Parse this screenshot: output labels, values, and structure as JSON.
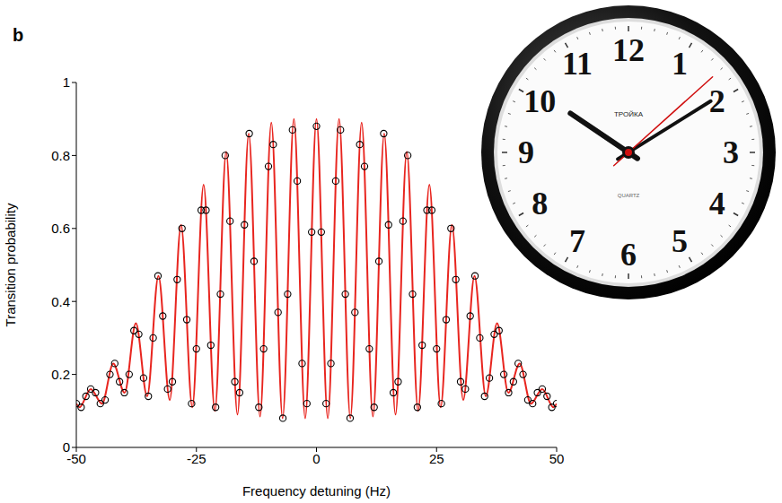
{
  "chart_data": {
    "type": "line",
    "panel_label": "b",
    "x_label": "Frequency detuning (Hz)",
    "y_label": "Transition probability",
    "xlim": [
      -50,
      50
    ],
    "ylim": [
      0,
      1
    ],
    "xticks": [
      -50,
      -25,
      0,
      25,
      50
    ],
    "yticks": [
      0,
      0.2,
      0.4,
      0.6,
      0.8,
      1
    ],
    "grid": false,
    "series": [
      {
        "type": "line",
        "color": "#e8251f",
        "line_style": "solid",
        "x": [
          -50,
          -49.35,
          -47,
          -44.65,
          -42.3,
          -39.95,
          -37.6,
          -35.25,
          -32.9,
          -30.55,
          -28.2,
          -25.85,
          -23.5,
          -21.15,
          -18.8,
          -16.45,
          -14.1,
          -11.75,
          -9.4,
          -7.05,
          -4.7,
          -2.35,
          0,
          2.35,
          4.7,
          7.05,
          9.4,
          11.75,
          14.1,
          16.45,
          18.8,
          21.15,
          23.5,
          25.85,
          28.2,
          30.55,
          32.9,
          35.25,
          37.6,
          39.95,
          42.3,
          44.65,
          47,
          49.35,
          50
        ],
        "values": [
          0.12,
          0.11,
          0.16,
          0.12,
          0.23,
          0.15,
          0.34,
          0.14,
          0.47,
          0.13,
          0.61,
          0.11,
          0.72,
          0.1,
          0.81,
          0.09,
          0.86,
          0.085,
          0.89,
          0.08,
          0.9,
          0.08,
          0.9,
          0.08,
          0.9,
          0.08,
          0.89,
          0.085,
          0.86,
          0.09,
          0.81,
          0.1,
          0.72,
          0.11,
          0.61,
          0.13,
          0.47,
          0.14,
          0.34,
          0.15,
          0.23,
          0.12,
          0.16,
          0.11,
          0.12
        ]
      },
      {
        "type": "scatter",
        "color": "#000000",
        "marker": "circle",
        "x": [
          -50,
          -49,
          -48,
          -47,
          -46,
          -45,
          -44,
          -43,
          -42,
          -41,
          -40,
          -39,
          -38,
          -37,
          -36,
          -35,
          -34,
          -33,
          -32,
          -31,
          -30,
          -29,
          -28,
          -27,
          -26,
          -25,
          -24,
          -23,
          -22,
          -21,
          -20,
          -19,
          -18,
          -17,
          -16,
          -15,
          -14,
          -13,
          -12,
          -11,
          -10,
          -9,
          -8,
          -7,
          -6,
          -5,
          -4,
          -3,
          -2,
          -1,
          0,
          1,
          2,
          3,
          4,
          5,
          6,
          7,
          8,
          9,
          10,
          11,
          12,
          13,
          14,
          15,
          16,
          17,
          18,
          19,
          20,
          21,
          22,
          23,
          24,
          25,
          26,
          27,
          28,
          29,
          30,
          31,
          32,
          33,
          34,
          35,
          36,
          37,
          38,
          39,
          40,
          41,
          42,
          43,
          44,
          45,
          46,
          47,
          48,
          49,
          50
        ],
        "values": [
          0.12,
          0.11,
          0.14,
          0.16,
          0.15,
          0.12,
          0.13,
          0.2,
          0.23,
          0.18,
          0.15,
          0.2,
          0.32,
          0.31,
          0.19,
          0.14,
          0.3,
          0.47,
          0.36,
          0.16,
          0.18,
          0.46,
          0.6,
          0.35,
          0.12,
          0.27,
          0.65,
          0.65,
          0.28,
          0.11,
          0.42,
          0.8,
          0.62,
          0.18,
          0.15,
          0.61,
          0.86,
          0.51,
          0.11,
          0.27,
          0.77,
          0.83,
          0.37,
          0.08,
          0.42,
          0.87,
          0.73,
          0.23,
          0.12,
          0.59,
          0.88,
          0.59,
          0.12,
          0.23,
          0.73,
          0.87,
          0.42,
          0.08,
          0.37,
          0.83,
          0.77,
          0.27,
          0.11,
          0.51,
          0.86,
          0.61,
          0.15,
          0.18,
          0.62,
          0.8,
          0.42,
          0.11,
          0.28,
          0.65,
          0.65,
          0.27,
          0.12,
          0.35,
          0.6,
          0.46,
          0.18,
          0.16,
          0.36,
          0.47,
          0.3,
          0.14,
          0.19,
          0.31,
          0.32,
          0.2,
          0.15,
          0.18,
          0.23,
          0.2,
          0.13,
          0.12,
          0.15,
          0.16,
          0.14,
          0.11,
          0.12
        ]
      }
    ]
  },
  "clock": {
    "numerals": [
      "12",
      "1",
      "2",
      "3",
      "4",
      "5",
      "6",
      "7",
      "8",
      "9",
      "10",
      "11"
    ],
    "brand": "ТРОЙКА",
    "model": "QUARTZ"
  }
}
